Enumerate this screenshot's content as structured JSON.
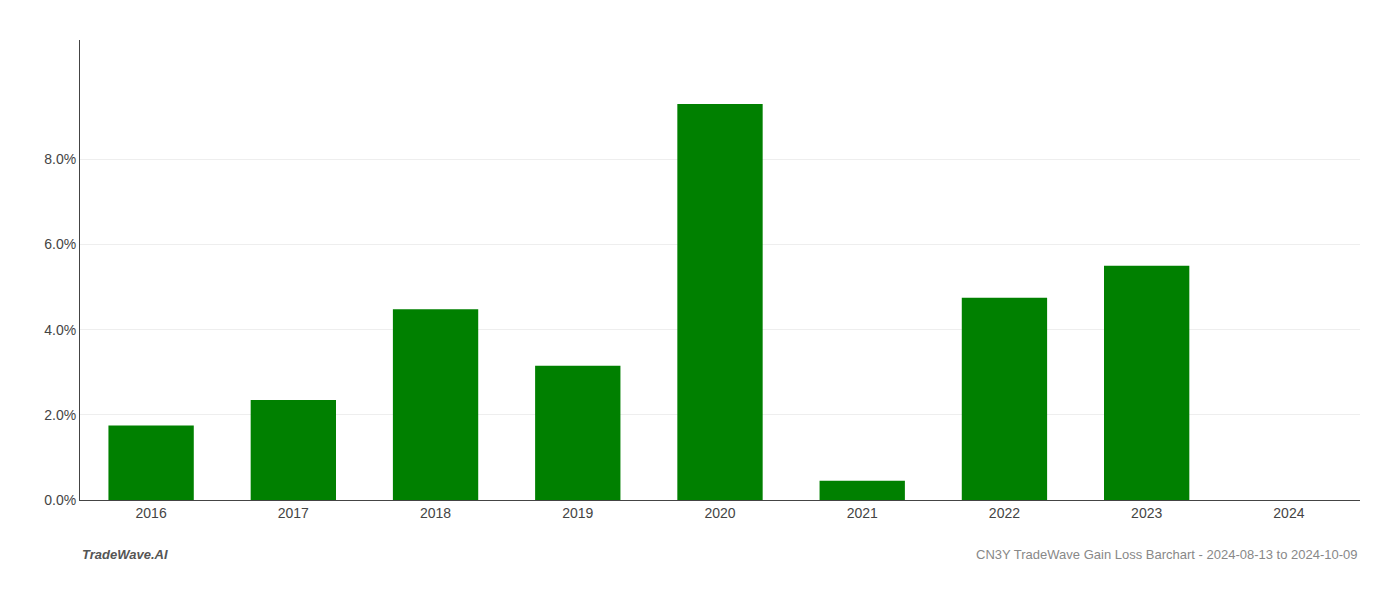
{
  "chart_data": {
    "type": "bar",
    "categories": [
      "2016",
      "2017",
      "2018",
      "2019",
      "2020",
      "2021",
      "2022",
      "2023",
      "2024"
    ],
    "values": [
      0.0175,
      0.0235,
      0.0448,
      0.0315,
      0.093,
      0.0045,
      0.0475,
      0.055,
      0.0
    ],
    "color": "#008000",
    "ylim": [
      0,
      0.108
    ],
    "yticks": [
      {
        "value": 0.0,
        "label": "0.0%"
      },
      {
        "value": 0.02,
        "label": "2.0%"
      },
      {
        "value": 0.04,
        "label": "4.0%"
      },
      {
        "value": 0.06,
        "label": "6.0%"
      },
      {
        "value": 0.08,
        "label": "8.0%"
      }
    ],
    "grid": true,
    "annotations": [
      "TradeWave.AI",
      "CN3Y TradeWave Gain Loss Barchart - 2024-08-13 to 2024-10-09"
    ]
  }
}
